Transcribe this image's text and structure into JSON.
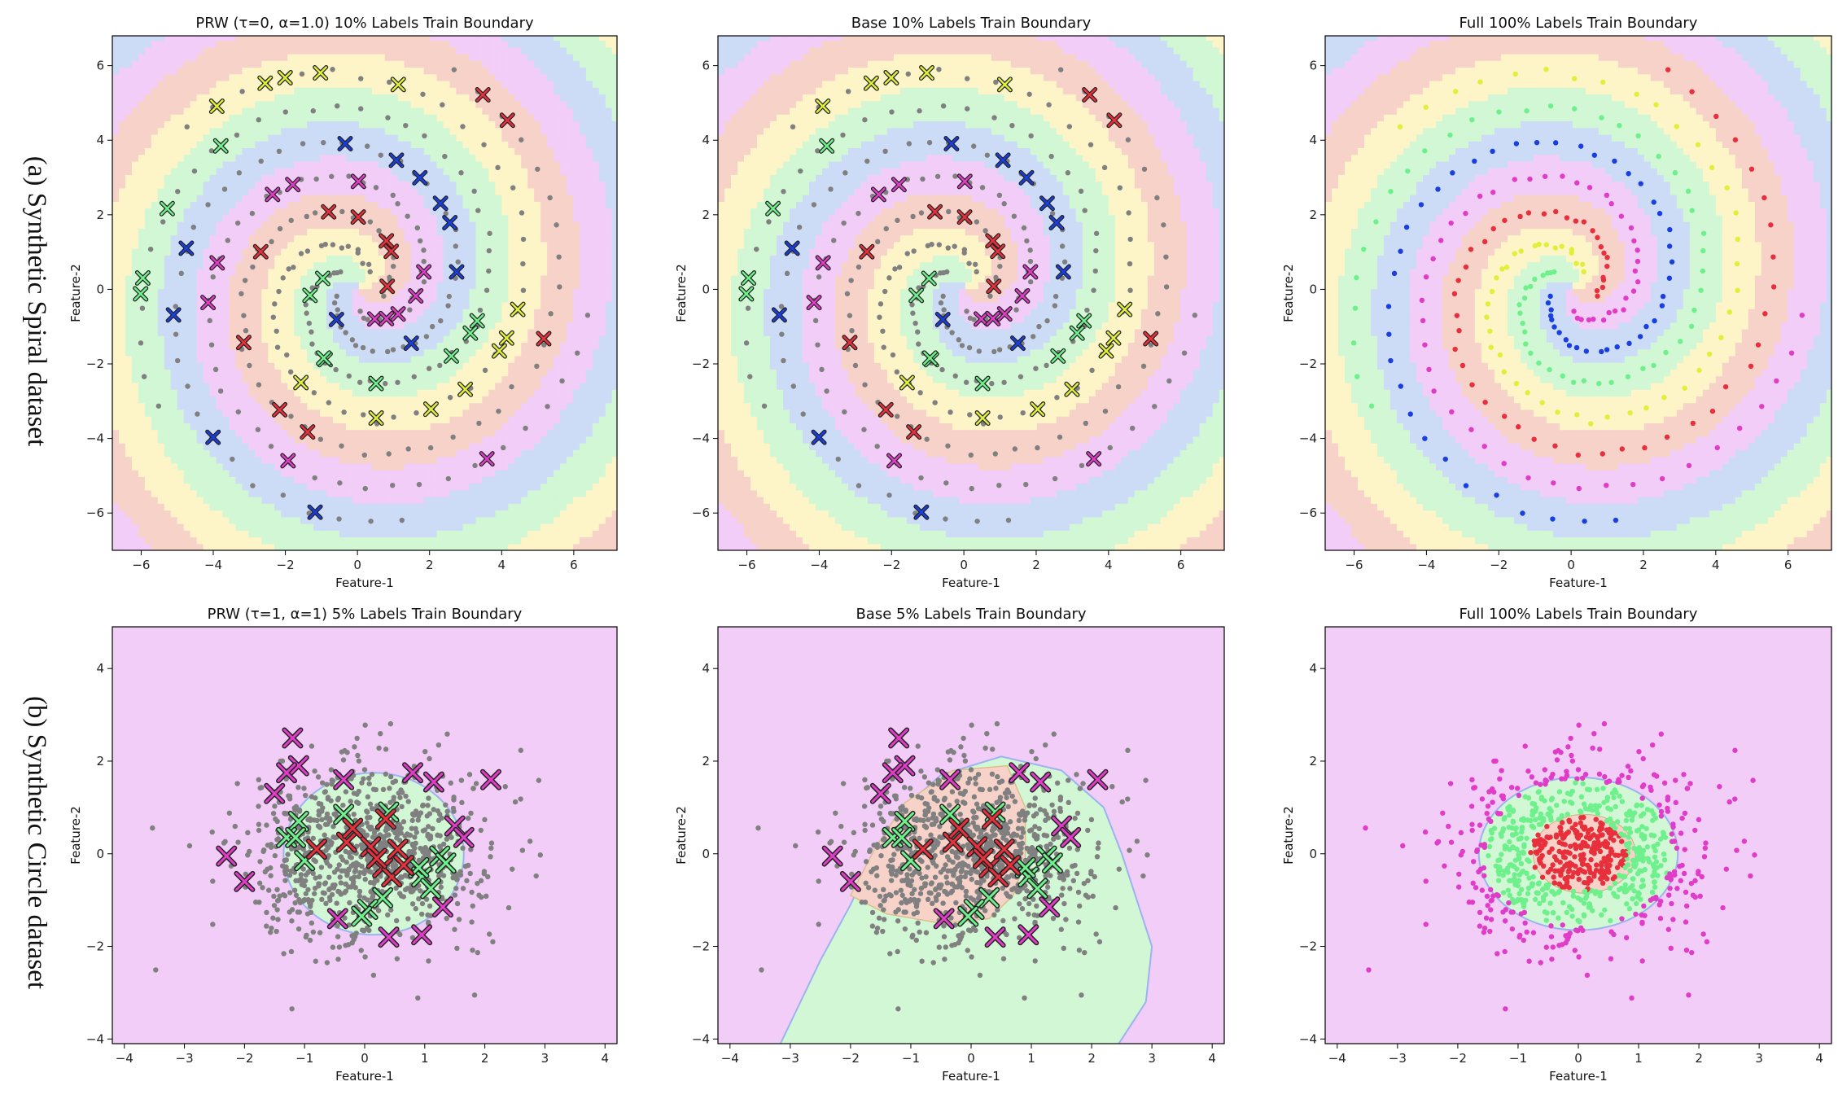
{
  "figure": {
    "row_labels": [
      "(a) Synthetic Spiral dataset",
      "(b) Synthetic Circle dataset"
    ]
  },
  "colors": {
    "class_region": {
      "red": "#f7d2c9",
      "yellow": "#fdf4c8",
      "green": "#d2f7d4",
      "blue": "#cddcf6",
      "magenta": "#f1cdf7"
    },
    "class_point": {
      "red": "#e8303c",
      "yellow": "#dff03a",
      "green": "#6ef08c",
      "blue": "#1a3fe0",
      "magenta": "#e03cc7"
    },
    "unlabeled_point": "#808080"
  },
  "chart_data": [
    {
      "type": "scatter",
      "dataset": "spiral",
      "title": "PRW (τ=0, α=1.0) 10% Labels Train Boundary",
      "xlabel": "Feature-1",
      "ylabel": "Feature-2",
      "xlim": [
        -6.8,
        7.2
      ],
      "ylim": [
        -7.0,
        6.8
      ],
      "xticks": [
        -6,
        -4,
        -2,
        0,
        2,
        4,
        6
      ],
      "yticks": [
        -6,
        -4,
        -2,
        0,
        2,
        4,
        6
      ],
      "classes": [
        "red",
        "yellow",
        "green",
        "blue",
        "magenta"
      ],
      "boundary": "PRW smooth spiral regions",
      "points": "spiral arms with ~10% labeled (x markers), rest unlabeled gray"
    },
    {
      "type": "scatter",
      "dataset": "spiral",
      "title": "Base 10% Labels Train Boundary",
      "xlabel": "Feature-1",
      "ylabel": "Feature-2",
      "xlim": [
        -6.8,
        7.2
      ],
      "ylim": [
        -7.0,
        6.8
      ],
      "xticks": [
        -6,
        -4,
        -2,
        0,
        2,
        4,
        6
      ],
      "yticks": [
        -6,
        -4,
        -2,
        0,
        2,
        4,
        6
      ],
      "classes": [
        "red",
        "yellow",
        "green",
        "blue",
        "magenta"
      ],
      "boundary": "Base irregular spiral regions",
      "points": "spiral arms with ~10% labeled (x markers), rest unlabeled gray"
    },
    {
      "type": "scatter",
      "dataset": "spiral",
      "title": "Full 100% Labels Train Boundary",
      "xlabel": "Feature-1",
      "ylabel": "Feature-2",
      "xlim": [
        -6.8,
        7.2
      ],
      "ylim": [
        -7.0,
        6.8
      ],
      "xticks": [
        -6,
        -4,
        -2,
        0,
        2,
        4,
        6
      ],
      "yticks": [
        -6,
        -4,
        -2,
        0,
        2,
        4,
        6
      ],
      "classes": [
        "red",
        "yellow",
        "green",
        "blue",
        "magenta"
      ],
      "boundary": "Full spiral regions",
      "points": "all points colored by class"
    },
    {
      "type": "scatter",
      "dataset": "circle",
      "title": "PRW (τ=1, α=1) 5% Labels Train Boundary",
      "xlabel": "Feature-1",
      "ylabel": "Feature-2",
      "xlim": [
        -4.2,
        4.2
      ],
      "ylim": [
        -4.1,
        4.9
      ],
      "xticks": [
        -4,
        -3,
        -2,
        -1,
        0,
        1,
        2,
        3,
        4
      ],
      "yticks": [
        -4,
        -2,
        0,
        2,
        4
      ],
      "classes": [
        "red",
        "green",
        "magenta"
      ],
      "regions": {
        "inner_red_radius": 0,
        "green_radius": 1.45,
        "center": [
          0.2,
          0.0
        ]
      },
      "labeled": [
        {
          "c": "magenta",
          "x": -1.2,
          "y": 2.5
        },
        {
          "c": "magenta",
          "x": -1.1,
          "y": 1.9
        },
        {
          "c": "magenta",
          "x": -1.3,
          "y": 1.75
        },
        {
          "c": "magenta",
          "x": -1.5,
          "y": 1.3
        },
        {
          "c": "magenta",
          "x": -2.3,
          "y": -0.05
        },
        {
          "c": "magenta",
          "x": -2.0,
          "y": -0.6
        },
        {
          "c": "magenta",
          "x": -0.35,
          "y": 1.6
        },
        {
          "c": "magenta",
          "x": 0.8,
          "y": 1.75
        },
        {
          "c": "magenta",
          "x": 1.15,
          "y": 1.55
        },
        {
          "c": "magenta",
          "x": 2.1,
          "y": 1.6
        },
        {
          "c": "magenta",
          "x": 1.5,
          "y": 0.6
        },
        {
          "c": "magenta",
          "x": 1.65,
          "y": 0.35
        },
        {
          "c": "magenta",
          "x": 1.3,
          "y": -1.15
        },
        {
          "c": "magenta",
          "x": -0.45,
          "y": -1.4
        },
        {
          "c": "magenta",
          "x": 0.4,
          "y": -1.8
        },
        {
          "c": "magenta",
          "x": 0.95,
          "y": -1.75
        },
        {
          "c": "green",
          "x": -1.1,
          "y": 0.7
        },
        {
          "c": "green",
          "x": -1.3,
          "y": 0.35
        },
        {
          "c": "green",
          "x": -1.0,
          "y": -0.15
        },
        {
          "c": "green",
          "x": -1.15,
          "y": 0.35
        },
        {
          "c": "green",
          "x": 0.4,
          "y": 0.9
        },
        {
          "c": "green",
          "x": -0.35,
          "y": 0.85
        },
        {
          "c": "green",
          "x": 0.95,
          "y": -0.5
        },
        {
          "c": "green",
          "x": 1.1,
          "y": -0.75
        },
        {
          "c": "green",
          "x": 1.25,
          "y": -0.05
        },
        {
          "c": "green",
          "x": 1.35,
          "y": -0.2
        },
        {
          "c": "green",
          "x": 0.3,
          "y": -0.95
        },
        {
          "c": "green",
          "x": 0.05,
          "y": -1.2
        },
        {
          "c": "green",
          "x": -0.05,
          "y": -1.35
        },
        {
          "c": "green",
          "x": 0.9,
          "y": -0.3
        },
        {
          "c": "red",
          "x": -0.8,
          "y": 0.1
        },
        {
          "c": "red",
          "x": -0.3,
          "y": 0.25
        },
        {
          "c": "red",
          "x": -0.2,
          "y": 0.55
        },
        {
          "c": "red",
          "x": 0.1,
          "y": 0.15
        },
        {
          "c": "red",
          "x": 0.3,
          "y": -0.3
        },
        {
          "c": "red",
          "x": 0.45,
          "y": -0.5
        },
        {
          "c": "red",
          "x": 0.55,
          "y": 0.1
        },
        {
          "c": "red",
          "x": 0.2,
          "y": -0.1
        },
        {
          "c": "red",
          "x": 0.65,
          "y": -0.25
        },
        {
          "c": "red",
          "x": 0.35,
          "y": 0.75
        }
      ]
    },
    {
      "type": "scatter",
      "dataset": "circle",
      "title": "Base 5% Labels Train Boundary",
      "xlabel": "Feature-1",
      "ylabel": "Feature-2",
      "xlim": [
        -4.2,
        4.2
      ],
      "ylim": [
        -4.1,
        4.9
      ],
      "xticks": [
        -4,
        -3,
        -2,
        -1,
        0,
        1,
        2,
        3,
        4
      ],
      "yticks": [
        -4,
        -2,
        0,
        2,
        4
      ],
      "classes": [
        "red",
        "green",
        "magenta"
      ],
      "regions": "Base irregular green lobe with red inner wedge",
      "labeled": "same as PRW panel"
    },
    {
      "type": "scatter",
      "dataset": "circle",
      "title": "Full 100% Labels Train Boundary",
      "xlabel": "Feature-1",
      "ylabel": "Feature-2",
      "xlim": [
        -4.2,
        4.2
      ],
      "ylim": [
        -4.1,
        4.9
      ],
      "xticks": [
        -4,
        -3,
        -2,
        -1,
        0,
        1,
        2,
        3,
        4
      ],
      "yticks": [
        -4,
        -2,
        0,
        2,
        4
      ],
      "classes": [
        "red",
        "green",
        "magenta"
      ],
      "regions": {
        "inner_red_radius": 0.75,
        "green_radius": 1.55,
        "center": [
          0.0,
          0.0
        ]
      },
      "points": "all points colored by class"
    }
  ]
}
